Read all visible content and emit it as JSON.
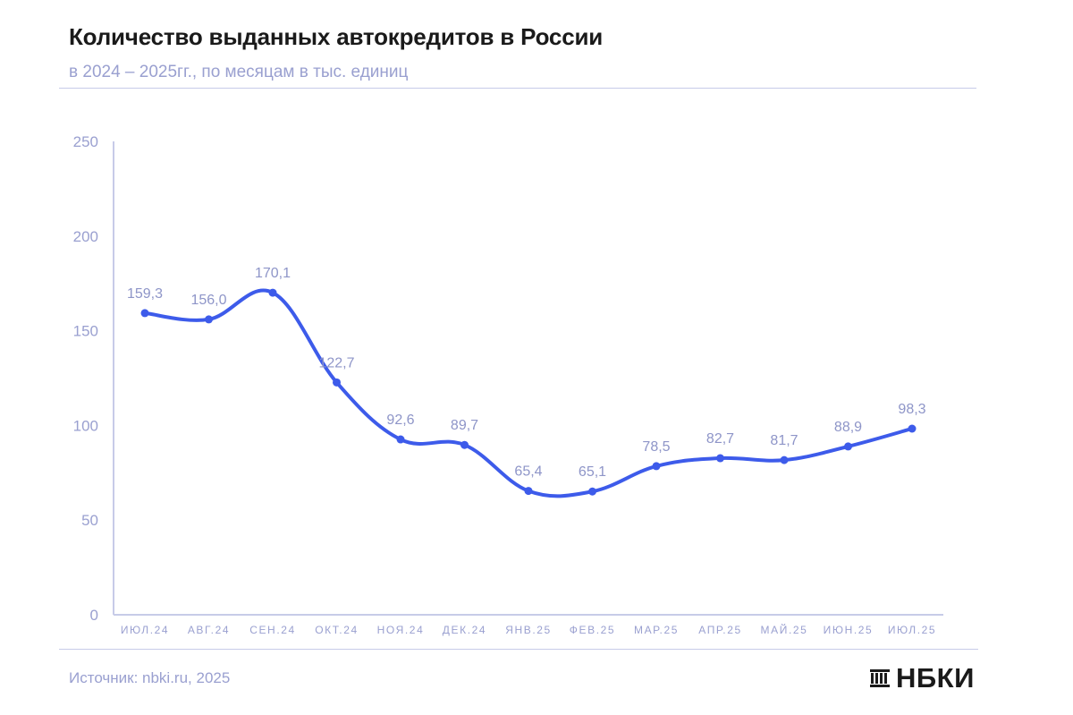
{
  "header": {
    "title": "Количество выданных автокредитов в России",
    "subtitle": "в 2024 – 2025гг., по месяцам в тыс. единиц"
  },
  "footer": {
    "source": "Источник: nbki.ru, 2025",
    "logo_text": "НБКИ"
  },
  "colors": {
    "line": "#3d5bea",
    "axis": "#c7cbe8",
    "label": "#9aa0d0"
  },
  "chart_data": {
    "type": "line",
    "categories": [
      "ИЮЛ.24",
      "АВГ.24",
      "СЕН.24",
      "ОКТ.24",
      "НОЯ.24",
      "ДЕК.24",
      "ЯНВ.25",
      "ФЕВ.25",
      "МАР.25",
      "АПР.25",
      "МАЙ.25",
      "ИЮН.25",
      "ИЮЛ.25"
    ],
    "series": [
      {
        "values": [
          159.3,
          156.0,
          170.1,
          122.7,
          92.6,
          89.7,
          65.4,
          65.1,
          78.5,
          82.7,
          81.7,
          88.9,
          98.3
        ],
        "labels": [
          "159,3",
          "156,0",
          "170,1",
          "122,7",
          "92,6",
          "89,7",
          "65,4",
          "65,1",
          "78,5",
          "82,7",
          "81,7",
          "88,9",
          "98,3"
        ]
      }
    ],
    "yticks": [
      "0",
      "50",
      "100",
      "150",
      "200",
      "250"
    ],
    "ylim": [
      0,
      250
    ],
    "smooth": true,
    "grid": false
  }
}
